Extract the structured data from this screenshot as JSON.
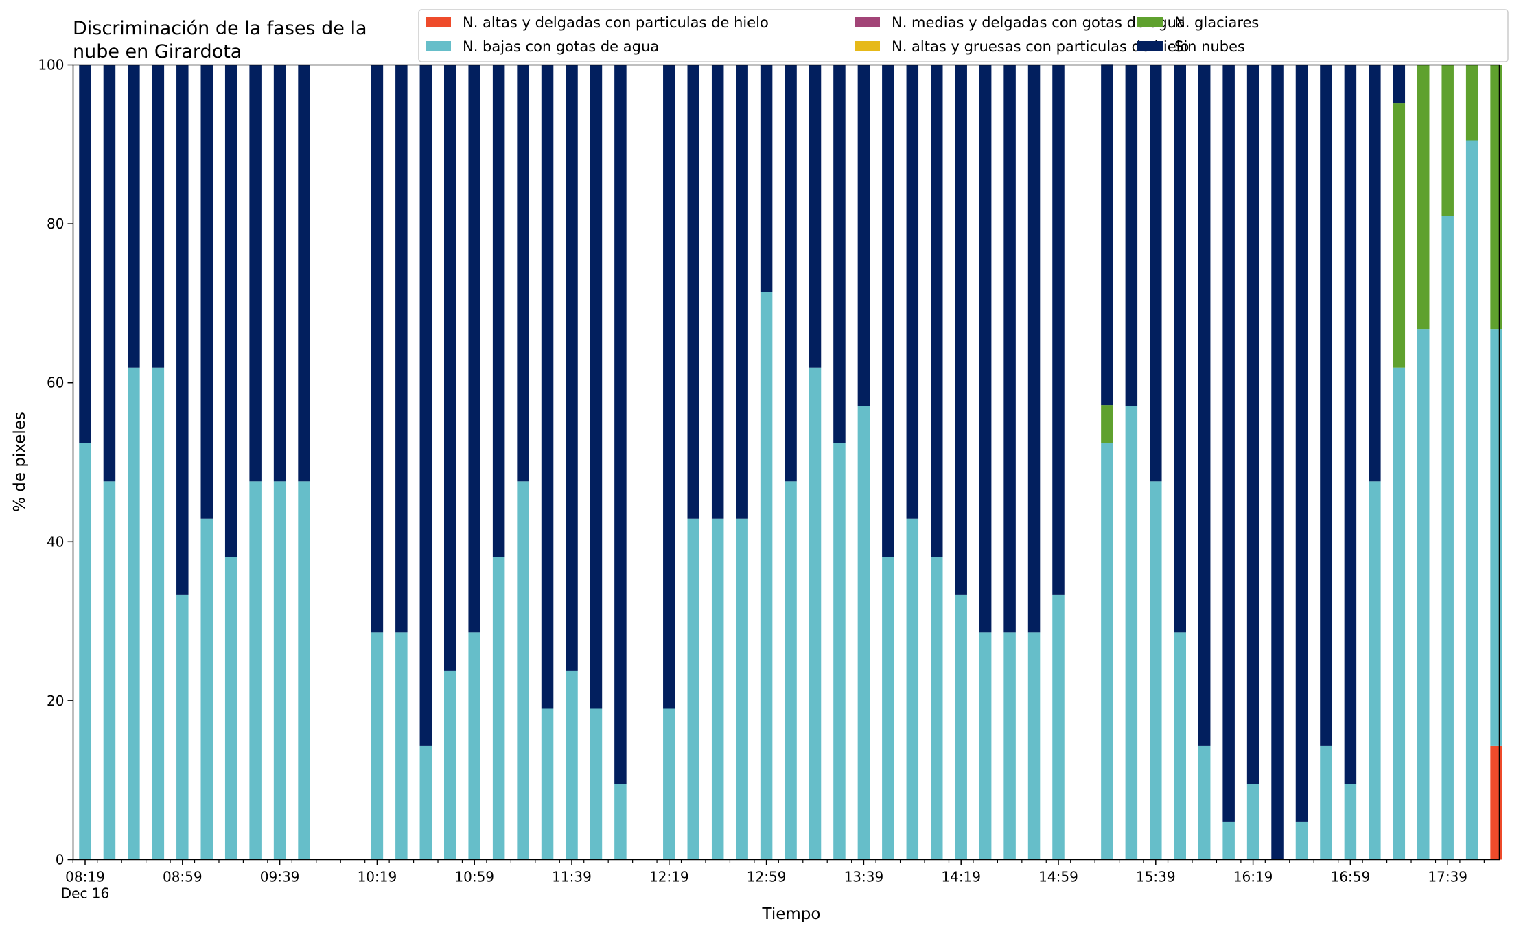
{
  "chart_data": {
    "type": "bar",
    "stacked": true,
    "title": "Discriminación de la fases de la\nnube en Girardota",
    "xlabel": "Tiempo",
    "ylabel": "% de pixeles",
    "ylim": [
      0,
      100
    ],
    "yticks": [
      0,
      20,
      40,
      60,
      80,
      100
    ],
    "grid": false,
    "legend_position": "top-right",
    "x_start_minutes": 499,
    "x_step_minutes": 10,
    "xticks": [
      {
        "minutes": 499,
        "label": "08:19",
        "sublabel": "Dec 16"
      },
      {
        "minutes": 539,
        "label": "08:59"
      },
      {
        "minutes": 579,
        "label": "09:39"
      },
      {
        "minutes": 619,
        "label": "10:19"
      },
      {
        "minutes": 659,
        "label": "10:59"
      },
      {
        "minutes": 699,
        "label": "11:39"
      },
      {
        "minutes": 739,
        "label": "12:19"
      },
      {
        "minutes": 779,
        "label": "12:59"
      },
      {
        "minutes": 819,
        "label": "13:39"
      },
      {
        "minutes": 859,
        "label": "14:19"
      },
      {
        "minutes": 899,
        "label": "14:59"
      },
      {
        "minutes": 939,
        "label": "15:39"
      },
      {
        "minutes": 979,
        "label": "16:19"
      },
      {
        "minutes": 1019,
        "label": "16:59"
      },
      {
        "minutes": 1059,
        "label": "17:39"
      }
    ],
    "series": [
      {
        "name": "N. altas y delgadas con particulas de hielo",
        "color": "#ee4b2b",
        "values": [
          0,
          0,
          0,
          0,
          0,
          0,
          0,
          0,
          0,
          0,
          null,
          null,
          0,
          0,
          0,
          0,
          0,
          0,
          0,
          0,
          0,
          0,
          0,
          null,
          0,
          0,
          0,
          0,
          0,
          0,
          0,
          0,
          0,
          0,
          0,
          0,
          0,
          0,
          0,
          0,
          0,
          null,
          0,
          0,
          0,
          0,
          0,
          0,
          0,
          0,
          0,
          0,
          0,
          0,
          0,
          0,
          0,
          0,
          14.3
        ]
      },
      {
        "name": "N. altas y gruesas con particulas de hielo",
        "color": "#e6b919",
        "values": [
          0,
          0,
          0,
          0,
          0,
          0,
          0,
          0,
          0,
          0,
          null,
          null,
          0,
          0,
          0,
          0,
          0,
          0,
          0,
          0,
          0,
          0,
          0,
          null,
          0,
          0,
          0,
          0,
          0,
          0,
          0,
          0,
          0,
          0,
          0,
          0,
          0,
          0,
          0,
          0,
          0,
          null,
          0,
          0,
          0,
          0,
          0,
          0,
          0,
          0,
          0,
          0,
          0,
          0,
          0,
          0,
          0,
          0,
          0
        ]
      },
      {
        "name": "N. bajas con gotas de agua",
        "color": "#66bec9",
        "values": [
          52.4,
          47.6,
          61.9,
          61.9,
          33.3,
          42.9,
          38.1,
          47.6,
          47.6,
          47.6,
          null,
          null,
          28.6,
          28.6,
          14.3,
          23.8,
          28.6,
          38.1,
          47.6,
          19.0,
          23.8,
          19.0,
          9.5,
          null,
          19.0,
          42.9,
          42.9,
          42.9,
          71.4,
          47.6,
          61.9,
          52.4,
          57.1,
          38.1,
          42.9,
          38.1,
          33.3,
          28.6,
          28.6,
          28.6,
          33.3,
          null,
          52.4,
          57.1,
          47.6,
          28.6,
          14.3,
          4.8,
          9.5,
          0,
          4.8,
          14.3,
          9.5,
          47.6,
          61.9,
          66.7,
          81.0,
          90.5,
          52.4
        ]
      },
      {
        "name": "N. glaciares",
        "color": "#5fa12e",
        "values": [
          0,
          0,
          0,
          0,
          0,
          0,
          0,
          0,
          0,
          0,
          null,
          null,
          0,
          0,
          0,
          0,
          0,
          0,
          0,
          0,
          0,
          0,
          0,
          null,
          0,
          0,
          0,
          0,
          0,
          0,
          0,
          0,
          0,
          0,
          0,
          0,
          0,
          0,
          0,
          0,
          0,
          null,
          4.8,
          0,
          0,
          0,
          0,
          0,
          0,
          0,
          0,
          0,
          0,
          0,
          33.3,
          33.3,
          19.0,
          9.5,
          33.3
        ]
      },
      {
        "name": "N. medias y delgadas con gotas de agua",
        "color": "#a24477",
        "values": [
          0,
          0,
          0,
          0,
          0,
          0,
          0,
          0,
          0,
          0,
          null,
          null,
          0,
          0,
          0,
          0,
          0,
          0,
          0,
          0,
          0,
          0,
          0,
          null,
          0,
          0,
          0,
          0,
          0,
          0,
          0,
          0,
          0,
          0,
          0,
          0,
          0,
          0,
          0,
          0,
          0,
          null,
          0,
          0,
          0,
          0,
          0,
          0,
          0,
          0,
          0,
          0,
          0,
          0,
          0,
          0,
          0,
          0,
          0
        ]
      },
      {
        "name": "Sin nubes",
        "color": "#021f5e",
        "values": [
          47.6,
          52.4,
          38.1,
          38.1,
          66.7,
          57.1,
          61.9,
          52.4,
          52.4,
          52.4,
          null,
          null,
          71.4,
          71.4,
          85.7,
          76.2,
          71.4,
          61.9,
          52.4,
          81.0,
          76.2,
          81.0,
          90.5,
          null,
          81.0,
          57.1,
          57.1,
          57.1,
          28.6,
          52.4,
          38.1,
          47.6,
          42.9,
          61.9,
          57.1,
          61.9,
          66.7,
          71.4,
          71.4,
          71.4,
          66.7,
          null,
          42.9,
          42.9,
          52.4,
          71.4,
          85.7,
          95.2,
          90.5,
          100,
          95.2,
          85.7,
          90.5,
          52.4,
          4.8,
          0,
          0,
          0,
          0
        ]
      }
    ],
    "stack_order": [
      "N. altas y delgadas con particulas de hielo",
      "N. altas y gruesas con particulas de hielo",
      "N. bajas con gotas de agua",
      "N. glaciares",
      "N. medias y delgadas con gotas de agua",
      "Sin nubes"
    ],
    "legend_order": [
      "N. altas y delgadas con particulas de hielo",
      "N. bajas con gotas de agua",
      "N. medias y delgadas con gotas de agua",
      "N. altas y gruesas con particulas de hielo",
      "N. glaciares",
      "Sin nubes"
    ]
  }
}
